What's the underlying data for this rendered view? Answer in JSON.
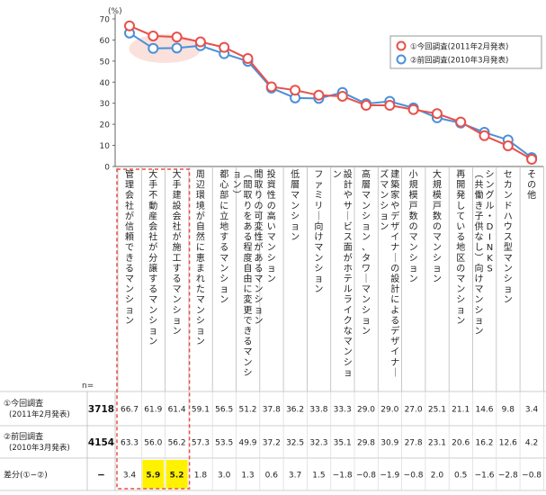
{
  "chart_data": {
    "type": "line",
    "unit_label": "(%)",
    "ylim": [
      0,
      70
    ],
    "yticks": [
      0,
      10,
      20,
      30,
      40,
      50,
      60,
      70
    ],
    "grid": false,
    "legend_position": "top-right",
    "categories": [
      "管理会社が信頼できるマンション",
      "大手不動産会社が分譲するマンション",
      "大手建設会社が施工するマンション",
      "周辺環境が自然に恵まれたマンション",
      "都心部に立地するマンション",
      "間取りの可変性があるマンション(間取りをある程度自由に変更できるマンション)",
      "投資性の高いマンション",
      "低層マンション",
      "ファミリー向けマンション",
      "設計やサービス面がホテルライクなマンション",
      "高層マンション、タワーマンション",
      "建築家やデザイナーの設計によるデザイナーズマンション",
      "小規模戸数のマンション",
      "大規模戸数のマンション",
      "再開発している地区のマンション",
      "シングル・DINKS(共働き子供なし)向けマンション",
      "セカンドハウス型マンション",
      "その他"
    ],
    "series": [
      {
        "name": "①今回調査(2011年2月発表)",
        "color": "#e8504a",
        "values": [
          66.7,
          61.9,
          61.4,
          59.1,
          56.5,
          51.2,
          37.8,
          36.2,
          33.8,
          33.3,
          29.0,
          29.0,
          27.0,
          25.1,
          21.1,
          14.6,
          9.8,
          3.4
        ]
      },
      {
        "name": "②前回調査(2010年3月発表)",
        "color": "#4a90d9",
        "values": [
          63.3,
          56.0,
          56.2,
          57.3,
          53.5,
          49.9,
          37.2,
          32.5,
          32.3,
          35.1,
          29.8,
          30.9,
          27.8,
          23.1,
          20.6,
          16.2,
          12.6,
          4.2
        ]
      }
    ],
    "highlight_categories": [
      0,
      1,
      2
    ],
    "highlight_diff_cells": [
      1,
      2
    ]
  },
  "table": {
    "n_header": "n=",
    "rows": [
      {
        "label": "①今回調査",
        "sublabel": "(2011年2月発表)",
        "n": "3718",
        "values": [
          "66.7",
          "61.9",
          "61.4",
          "59.1",
          "56.5",
          "51.2",
          "37.8",
          "36.2",
          "33.8",
          "33.3",
          "29.0",
          "29.0",
          "27.0",
          "25.1",
          "21.1",
          "14.6",
          "9.8",
          "3.4"
        ]
      },
      {
        "label": "②前回調査",
        "sublabel": "(2010年3月発表)",
        "n": "4154",
        "values": [
          "63.3",
          "56.0",
          "56.2",
          "57.3",
          "53.5",
          "49.9",
          "37.2",
          "32.5",
          "32.3",
          "35.1",
          "29.8",
          "30.9",
          "27.8",
          "23.1",
          "20.6",
          "16.2",
          "12.6",
          "4.2"
        ]
      },
      {
        "label": "差分(①−②)",
        "sublabel": "",
        "n": "−",
        "values": [
          "3.4",
          "5.9",
          "5.2",
          "1.8",
          "3.0",
          "1.3",
          "0.6",
          "3.7",
          "1.5",
          "−1.8",
          "−0.8",
          "−1.9",
          "−0.8",
          "2.0",
          "0.5",
          "−1.6",
          "−2.8",
          "−0.8"
        ]
      }
    ]
  }
}
